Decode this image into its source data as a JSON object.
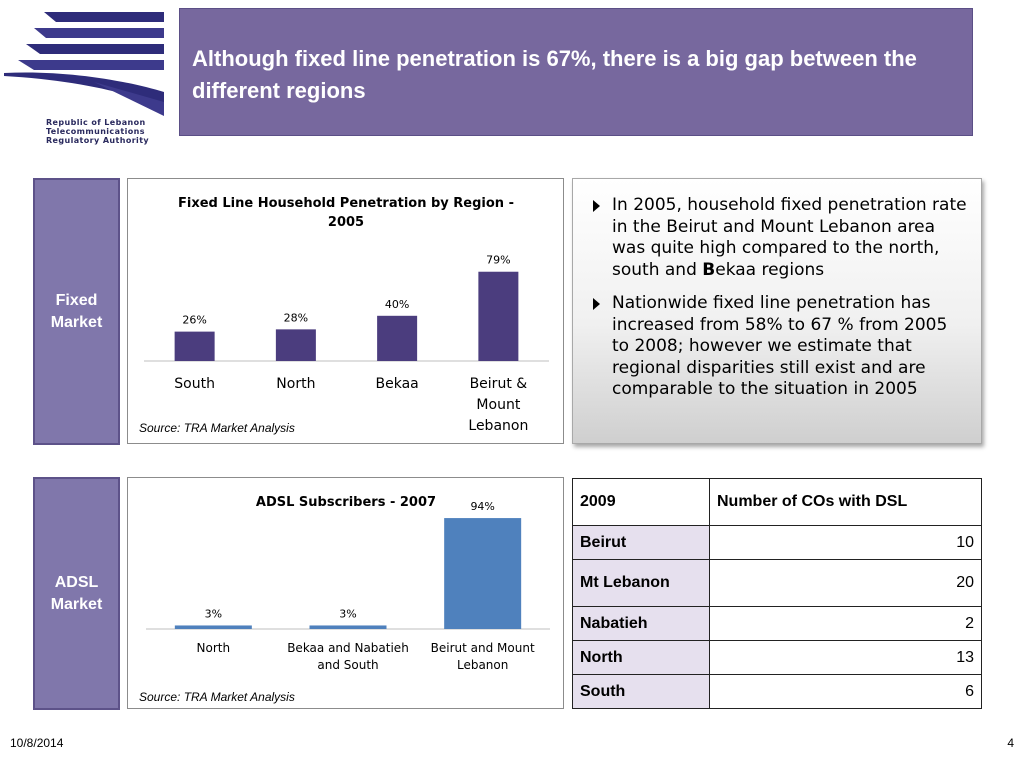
{
  "logo": {
    "lines": [
      "Republic of Lebanon",
      "Telecommunications",
      "Regulatory Authority"
    ],
    "colors": [
      "#2e2c7a",
      "#3d3a8c"
    ]
  },
  "title": "Although fixed line penetration is 67%, there is a big gap between the different regions",
  "sections": {
    "fixed_label_1": "Fixed",
    "fixed_label_2": "Market",
    "adsl_label_1": "ADSL",
    "adsl_label_2": "Market"
  },
  "chart_data": [
    {
      "type": "bar",
      "title": "Fixed Line Household Penetration by Region - 2005",
      "title_lines": [
        "Fixed Line Household Penetration by Region -",
        "2005"
      ],
      "categories": [
        "South",
        "North",
        "Bekaa",
        "Beirut & Mount Lebanon"
      ],
      "category_lines": [
        [
          "South"
        ],
        [
          "North"
        ],
        [
          "Bekaa"
        ],
        [
          "Beirut &",
          "Mount",
          "Lebanon"
        ]
      ],
      "values": [
        26,
        28,
        40,
        79
      ],
      "value_labels": [
        "26%",
        "28%",
        "40%",
        "79%"
      ],
      "ylim": [
        0,
        100
      ],
      "grid": false,
      "color": "#4b3d7e",
      "source": "Source: TRA Market Analysis"
    },
    {
      "type": "bar",
      "title": "ADSL Subscribers - 2007",
      "categories": [
        "North",
        "Bekaa and Nabatieh and South",
        "Beirut and Mount Lebanon"
      ],
      "category_lines": [
        [
          "North"
        ],
        [
          "Bekaa and Nabatieh",
          "and South"
        ],
        [
          "Beirut and Mount",
          "Lebanon"
        ]
      ],
      "values": [
        3,
        3,
        94
      ],
      "value_labels": [
        "3%",
        "3%",
        "94%"
      ],
      "ylim": [
        0,
        100
      ],
      "grid": false,
      "color": "#4f81bd",
      "source": "Source: TRA Market Analysis"
    }
  ],
  "bullets": {
    "b1_pre": "In 2005, household fixed penetration rate in the Beirut and Mount Lebanon area was quite high compared to the north, south and ",
    "b1_bold": "B",
    "b1_post": "ekaa regions",
    "b2": "Nationwide fixed line penetration has increased from 58% to 67 % from 2005 to 2008; however we estimate that regional disparities still exist and are comparable to the situation in 2005"
  },
  "dsl_table": {
    "headers": [
      "2009",
      "Number of COs with DSL"
    ],
    "rows": [
      {
        "region": "Beirut",
        "value": "10"
      },
      {
        "region": "Mt Lebanon",
        "value": "20"
      },
      {
        "region": "Nabatieh",
        "value": "2"
      },
      {
        "region": "North",
        "value": "13"
      },
      {
        "region": "South",
        "value": "6"
      }
    ]
  },
  "footer": {
    "date": "10/8/2014",
    "page": "4"
  }
}
